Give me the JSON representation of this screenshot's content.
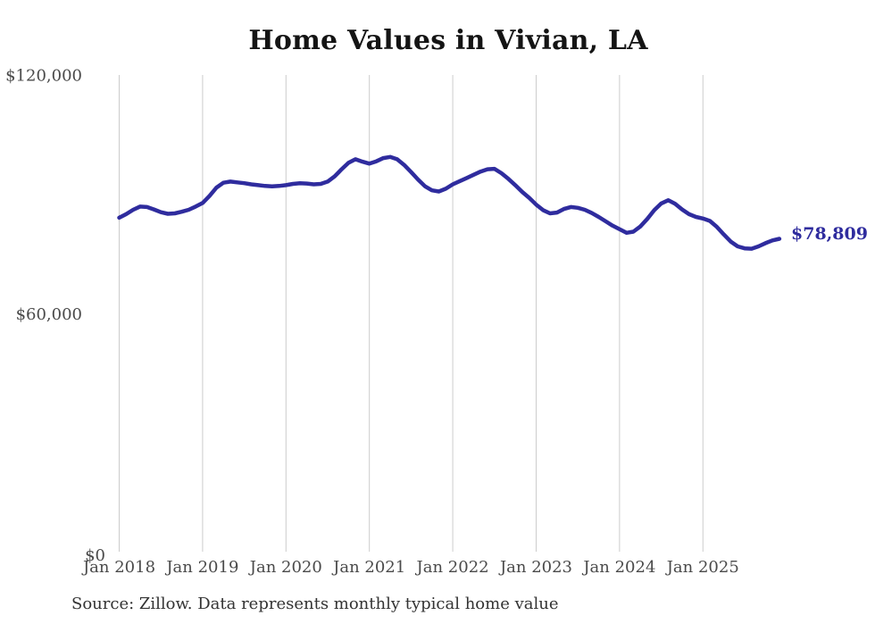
{
  "page": {
    "title": "Home Values in Vivian, LA",
    "source_note": "Source: Zillow. Data represents monthly typical home value"
  },
  "chart_data": {
    "type": "line",
    "title": "Home Values in Vivian, LA",
    "frequency": "monthly",
    "x_start": "Jan 2018",
    "x_end": "Dec 2025",
    "x_tick_labels": [
      "Jan 2018",
      "Jan 2019",
      "Jan 2020",
      "Jan 2021",
      "Jan 2022",
      "Jan 2023",
      "Jan 2024",
      "Jan 2025"
    ],
    "y_ticks": [
      {
        "value": 0,
        "label": "$0"
      },
      {
        "value": 60000,
        "label": "$60,000"
      },
      {
        "value": 120000,
        "label": "$120,000"
      }
    ],
    "ylim": [
      0,
      120000
    ],
    "grid": "vertical-only",
    "legend": "none",
    "line_color": "#2f2c9e",
    "gridline_color": "#cccccc",
    "tick_label_color": "#4a4a4a",
    "end_label": "$78,809",
    "last_value": 78809,
    "series": [
      {
        "name": "Typical home value",
        "values": [
          84100,
          85000,
          86100,
          86900,
          86800,
          86200,
          85500,
          85100,
          85200,
          85600,
          86100,
          86900,
          87800,
          89600,
          91700,
          92900,
          93200,
          93000,
          92800,
          92500,
          92300,
          92100,
          92000,
          92100,
          92300,
          92600,
          92800,
          92700,
          92500,
          92600,
          93200,
          94500,
          96300,
          97900,
          98800,
          98200,
          97700,
          98300,
          99100,
          99400,
          98800,
          97400,
          95600,
          93700,
          92000,
          91000,
          90700,
          91400,
          92500,
          93300,
          94100,
          94900,
          95700,
          96300,
          96400,
          95300,
          93900,
          92300,
          90600,
          89100,
          87400,
          86000,
          85200,
          85400,
          86300,
          86800,
          86600,
          86100,
          85300,
          84300,
          83200,
          82100,
          81200,
          80300,
          80600,
          81900,
          83800,
          86000,
          87700,
          88500,
          87600,
          86200,
          85000,
          84300,
          83900,
          83300,
          81800,
          79900,
          78100,
          76900,
          76400,
          76300,
          76900,
          77700,
          78400,
          78809
        ]
      }
    ]
  }
}
